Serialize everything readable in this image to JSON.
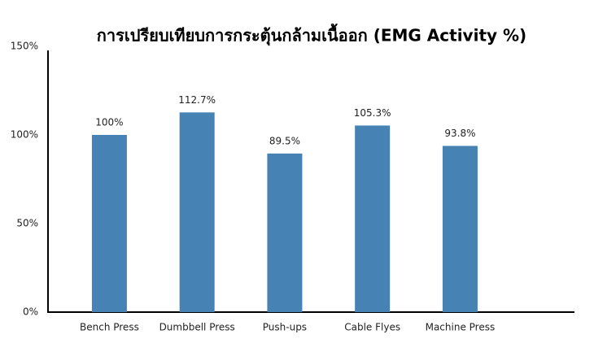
{
  "chart_data": {
    "type": "bar",
    "title": "การเปรียบเทียบการกระตุ้นกล้ามเนื้ออก (EMG Activity %)",
    "categories": [
      "Bench Press",
      "Dumbbell Press",
      "Push-ups",
      "Cable Flyes",
      "Machine Press"
    ],
    "values": [
      100,
      112.7,
      89.5,
      105.3,
      93.8
    ],
    "value_labels": [
      "100%",
      "112.7%",
      "89.5%",
      "105.3%",
      "93.8%"
    ],
    "color": "#4682b4",
    "ylim": [
      0,
      150
    ],
    "yticks": [
      {
        "value": 0,
        "label": "0%"
      },
      {
        "value": 50,
        "label": "50%"
      },
      {
        "value": 100,
        "label": "100%"
      },
      {
        "value": 150,
        "label": "150%"
      }
    ],
    "grid": false
  }
}
